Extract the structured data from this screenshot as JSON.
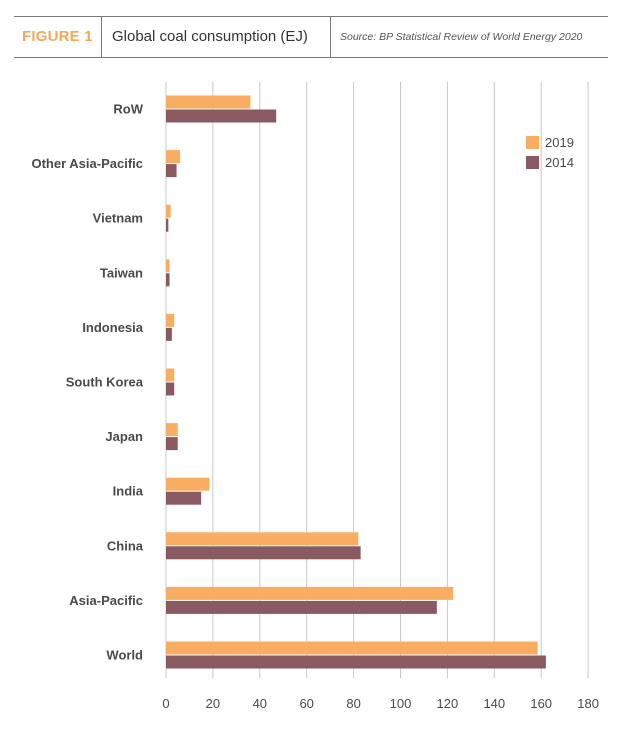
{
  "header": {
    "figure_label": "FIGURE 1",
    "title": "Global coal consumption (EJ)",
    "source": "Source: BP Statistical Review of World Energy 2020"
  },
  "colors": {
    "series_2019": "#f9ad62",
    "series_2014": "#8a5a62",
    "grid": "#c8c8c8",
    "accent": "#f5a85c"
  },
  "chart_data": {
    "type": "bar",
    "orientation": "horizontal",
    "categories": [
      "RoW",
      "Other Asia-Pacific",
      "Vietnam",
      "Taiwan",
      "Indonesia",
      "South Korea",
      "Japan",
      "India",
      "China",
      "Asia-Pacific",
      "World"
    ],
    "series": [
      {
        "name": "2019",
        "values": [
          36,
          6,
          2,
          1.5,
          3.5,
          3.5,
          5,
          18.5,
          82,
          122.5,
          158.5
        ]
      },
      {
        "name": "2014",
        "values": [
          47,
          4.5,
          1,
          1.5,
          2.5,
          3.5,
          5,
          15,
          83,
          115.5,
          162
        ]
      }
    ],
    "xlim": [
      0,
      180
    ],
    "xticks": [
      "0",
      "20",
      "40",
      "60",
      "80",
      "100",
      "120",
      "140",
      "160",
      "180"
    ],
    "grid": true,
    "legend_position": "top-right"
  }
}
